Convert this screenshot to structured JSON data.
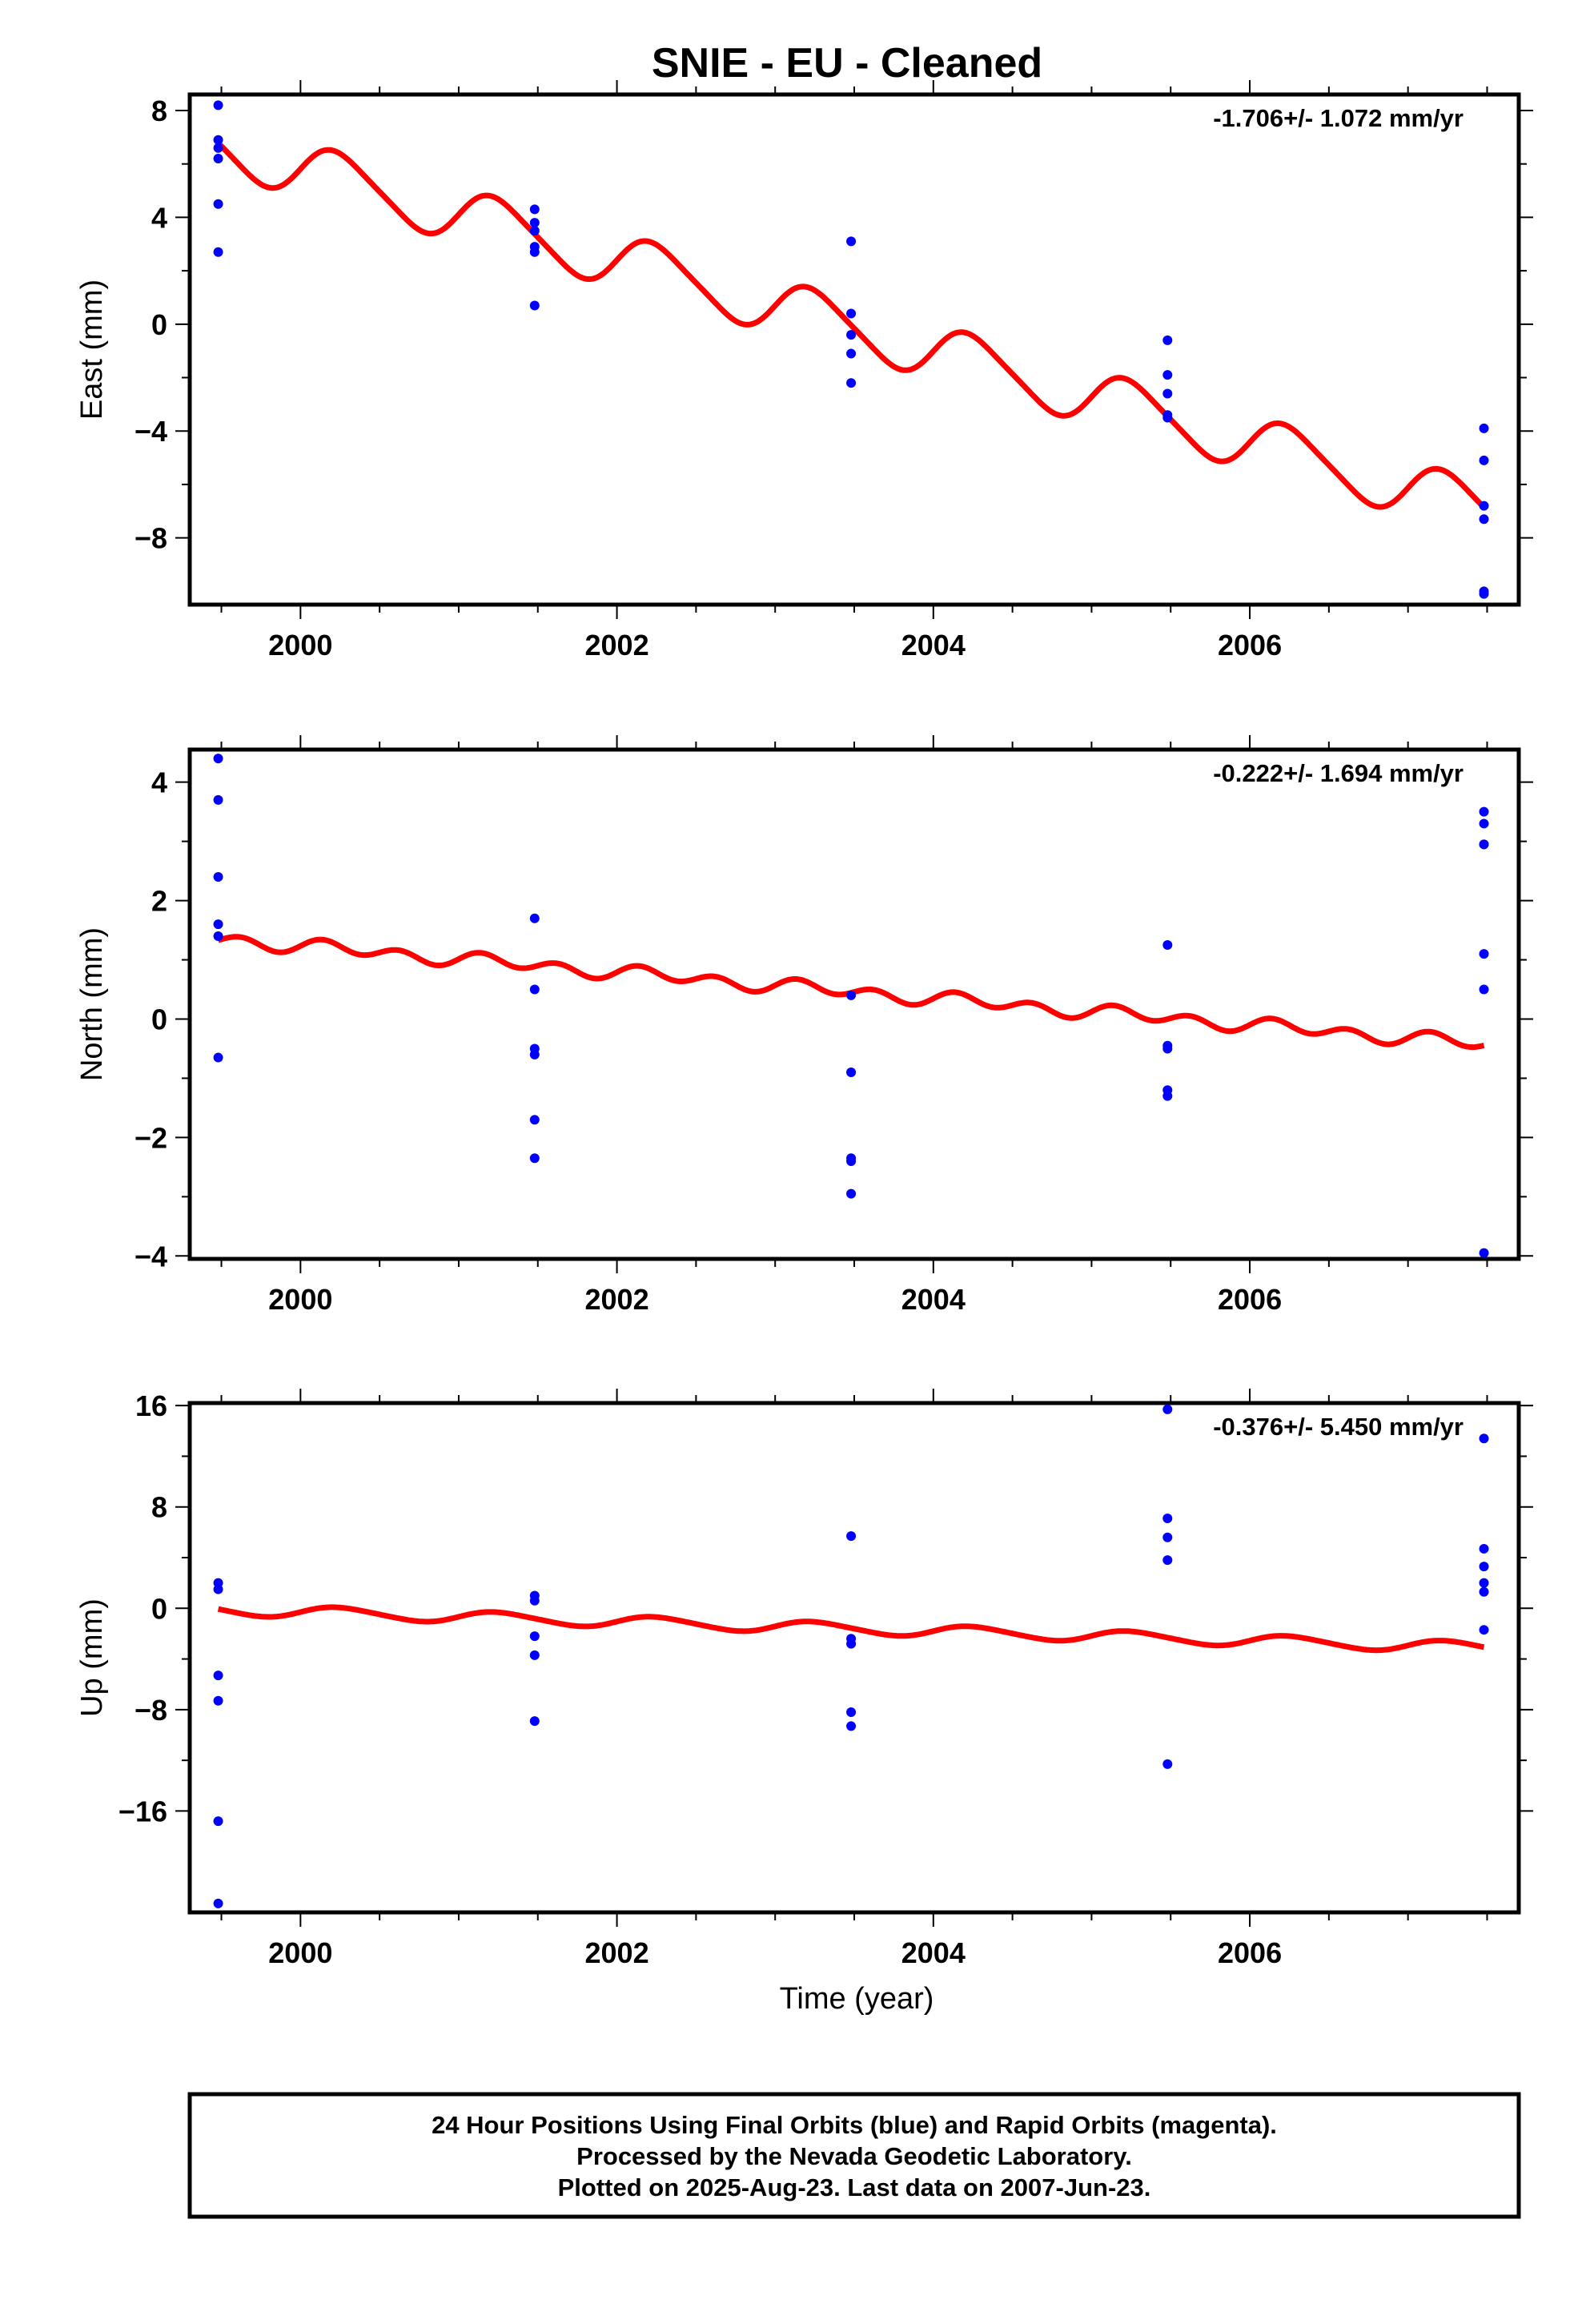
{
  "chart_data": [
    {
      "type": "scatter",
      "title": "SNIE  - EU - Cleaned",
      "ylabel": "East (mm)",
      "xlabel": "",
      "rate_text": "-1.706+/- 1.072 mm/yr",
      "xlim": [
        1999.3,
        2007.7
      ],
      "ylim": [
        -10.5,
        8.6
      ],
      "xticks": [
        2000,
        2002,
        2004,
        2006
      ],
      "xtick_labels": [
        "2000",
        "2002",
        "2004",
        "2006"
      ],
      "yticks": [
        8,
        4,
        0,
        -4,
        -8
      ],
      "ytick_labels": [
        "8",
        "4",
        "0",
        "−4",
        "−8"
      ],
      "points_color": "#0000ff",
      "model_color": "#ff0000",
      "series": [
        {
          "kind": "points",
          "x": [
            1999.48,
            1999.48,
            1999.48,
            1999.48,
            1999.48,
            1999.48,
            2001.48,
            2001.48,
            2001.48,
            2001.48,
            2001.48,
            2001.48,
            2003.48,
            2003.48,
            2003.48,
            2003.48,
            2003.48,
            2005.48,
            2005.48,
            2005.48,
            2005.48,
            2005.48,
            2007.48,
            2007.48,
            2007.48,
            2007.48,
            2007.48,
            2007.48
          ],
          "y": [
            8.2,
            6.9,
            6.2,
            4.5,
            2.7,
            6.6,
            4.3,
            3.8,
            3.5,
            2.9,
            2.7,
            0.7,
            3.1,
            0.4,
            -0.4,
            -1.1,
            -2.2,
            -0.6,
            -1.9,
            -2.6,
            -3.5,
            -3.4,
            -3.9,
            -5.1,
            -6.8,
            -7.3,
            -10.0,
            -10.1
          ]
        },
        {
          "kind": "model",
          "x0": 1999.48,
          "x1": 2007.48,
          "intercept": 6.7,
          "rate": -1.706,
          "annual_cos": 0.0,
          "annual_sin": 1.0,
          "semiannual_cos": 0.0,
          "semiannual_sin": 0.15
        }
      ]
    },
    {
      "type": "scatter",
      "title": "",
      "ylabel": "North (mm)",
      "xlabel": "",
      "rate_text": "-0.222+/- 1.694 mm/yr",
      "xlim": [
        1999.3,
        2007.7
      ],
      "ylim": [
        -4.05,
        4.55
      ],
      "xticks": [
        2000,
        2002,
        2004,
        2006
      ],
      "xtick_labels": [
        "2000",
        "2002",
        "2004",
        "2006"
      ],
      "yticks": [
        4,
        2,
        0,
        -2,
        -4
      ],
      "ytick_labels": [
        "4",
        "2",
        "0",
        "−2",
        "−4"
      ],
      "points_color": "#0000ff",
      "model_color": "#ff0000",
      "series": [
        {
          "kind": "points",
          "x": [
            1999.48,
            1999.48,
            1999.48,
            1999.48,
            1999.48,
            1999.48,
            2001.48,
            2001.48,
            2001.48,
            2001.48,
            2001.48,
            2001.48,
            2003.48,
            2003.48,
            2003.48,
            2003.48,
            2003.48,
            2005.48,
            2005.48,
            2005.48,
            2005.48,
            2005.48,
            2007.48,
            2007.48,
            2007.48,
            2007.48,
            2007.48,
            2007.48,
            2007.48
          ],
          "y": [
            4.4,
            3.7,
            2.4,
            1.6,
            1.4,
            -0.65,
            1.7,
            0.5,
            -0.5,
            -0.6,
            -1.7,
            -2.35,
            0.4,
            -0.9,
            -2.35,
            -2.4,
            -2.95,
            1.25,
            -0.45,
            -0.5,
            -1.2,
            -1.3,
            3.5,
            3.3,
            2.95,
            1.1,
            0.5,
            -3.95,
            2.95
          ]
        },
        {
          "kind": "model",
          "x0": 1999.48,
          "x1": 2007.48,
          "intercept": 1.35,
          "rate": -0.222,
          "annual_cos": 0.0,
          "annual_sin": 0.05,
          "semiannual_cos": 0.0,
          "semiannual_sin": 0.1
        }
      ]
    },
    {
      "type": "scatter",
      "title": "",
      "ylabel": "Up (mm)",
      "xlabel": "Time (year)",
      "rate_text": "-0.376+/- 5.450 mm/yr",
      "xlim": [
        1999.3,
        2007.7
      ],
      "ylim": [
        -24.0,
        16.2
      ],
      "xticks": [
        2000,
        2002,
        2004,
        2006
      ],
      "xtick_labels": [
        "2000",
        "2002",
        "2004",
        "2006"
      ],
      "yticks": [
        16,
        8,
        0,
        -8,
        -16
      ],
      "ytick_labels": [
        "16",
        "8",
        "0",
        "−8",
        "−16"
      ],
      "points_color": "#0000ff",
      "model_color": "#ff0000",
      "series": [
        {
          "kind": "points",
          "x": [
            1999.48,
            1999.48,
            1999.48,
            1999.48,
            1999.48,
            1999.48,
            2001.48,
            2001.48,
            2001.48,
            2001.48,
            2001.48,
            2003.48,
            2003.48,
            2003.48,
            2003.48,
            2003.48,
            2005.48,
            2005.48,
            2005.48,
            2005.48,
            2005.48,
            2007.48,
            2007.48,
            2007.48,
            2007.48,
            2007.48,
            2007.48
          ],
          "y": [
            2.0,
            1.5,
            -5.3,
            -7.3,
            -16.8,
            -23.3,
            1.0,
            0.6,
            -2.2,
            -3.7,
            -8.9,
            5.7,
            -2.4,
            -2.8,
            -8.2,
            -9.3,
            15.7,
            7.1,
            5.6,
            3.8,
            -12.3,
            13.4,
            4.7,
            3.3,
            2.0,
            1.3,
            -1.7
          ]
        },
        {
          "kind": "model",
          "x0": 1999.48,
          "x1": 2007.48,
          "intercept": -0.1,
          "rate": -0.376,
          "annual_cos": 0.0,
          "annual_sin": 0.45,
          "semiannual_cos": 0.0,
          "semiannual_sin": 0.05
        }
      ]
    }
  ],
  "footer": {
    "line1": "24 Hour Positions Using Final Orbits (blue) and Rapid Orbits (magenta).",
    "line2": "Processed by the Nevada Geodetic Laboratory.",
    "line3": "Plotted on 2025-Aug-23. Last data on 2007-Jun-23."
  }
}
